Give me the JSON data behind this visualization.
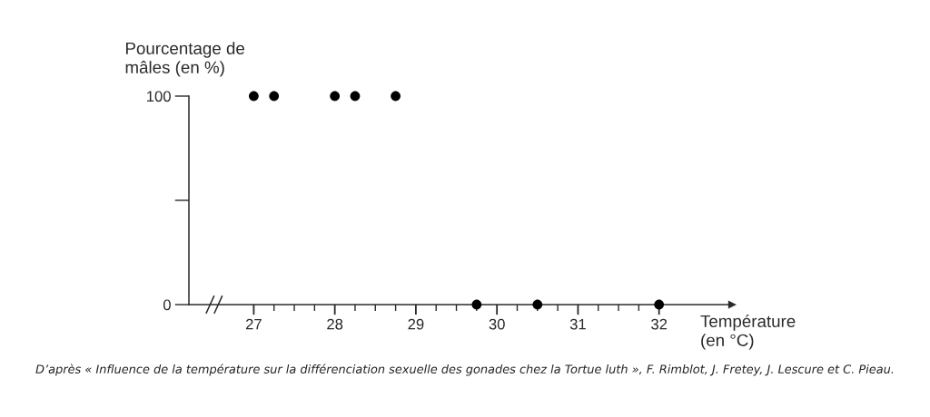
{
  "chart_data": {
    "type": "scatter",
    "ylabel": "Pourcentage de\nmâles (en %)",
    "xlabel": "Température\n(en °C)",
    "annotations": [
      "D’après « Influence de la température sur la différenciation sexuelle des gonades chez la Tortue luth », F. Rimblot, J. Fretey, J. Lescure et C. Pieau."
    ],
    "series": [
      {
        "color": "#000000",
        "x": [
          27,
          27.25,
          28,
          28.25,
          28.75,
          29.75,
          30.5,
          32
        ],
        "values": [
          100,
          100,
          100,
          100,
          100,
          0,
          0,
          0
        ]
      }
    ],
    "xlim": [
      26.2,
      32.9
    ],
    "xticks": [
      27,
      {
        "value": 27.25,
        "label": null
      },
      {
        "value": 27.5,
        "label": null
      },
      {
        "value": 27.75,
        "label": null
      },
      28,
      {
        "value": 28.25,
        "label": null
      },
      {
        "value": 28.5,
        "label": null
      },
      {
        "value": 28.75,
        "label": null
      },
      29,
      {
        "value": 29.25,
        "label": null
      },
      {
        "value": 29.5,
        "label": null
      },
      {
        "value": 29.75,
        "label": null
      },
      30,
      {
        "value": 30.25,
        "label": null
      },
      {
        "value": 30.5,
        "label": null
      },
      {
        "value": 30.75,
        "label": null
      },
      31,
      {
        "value": 31.25,
        "label": null
      },
      {
        "value": 31.5,
        "label": null
      },
      {
        "value": 31.75,
        "label": null
      },
      32
    ],
    "ylim": [
      0,
      100
    ],
    "yticks": [
      0,
      {
        "value": 50,
        "label": null
      },
      100
    ],
    "grid": false,
    "marker": "circle"
  }
}
